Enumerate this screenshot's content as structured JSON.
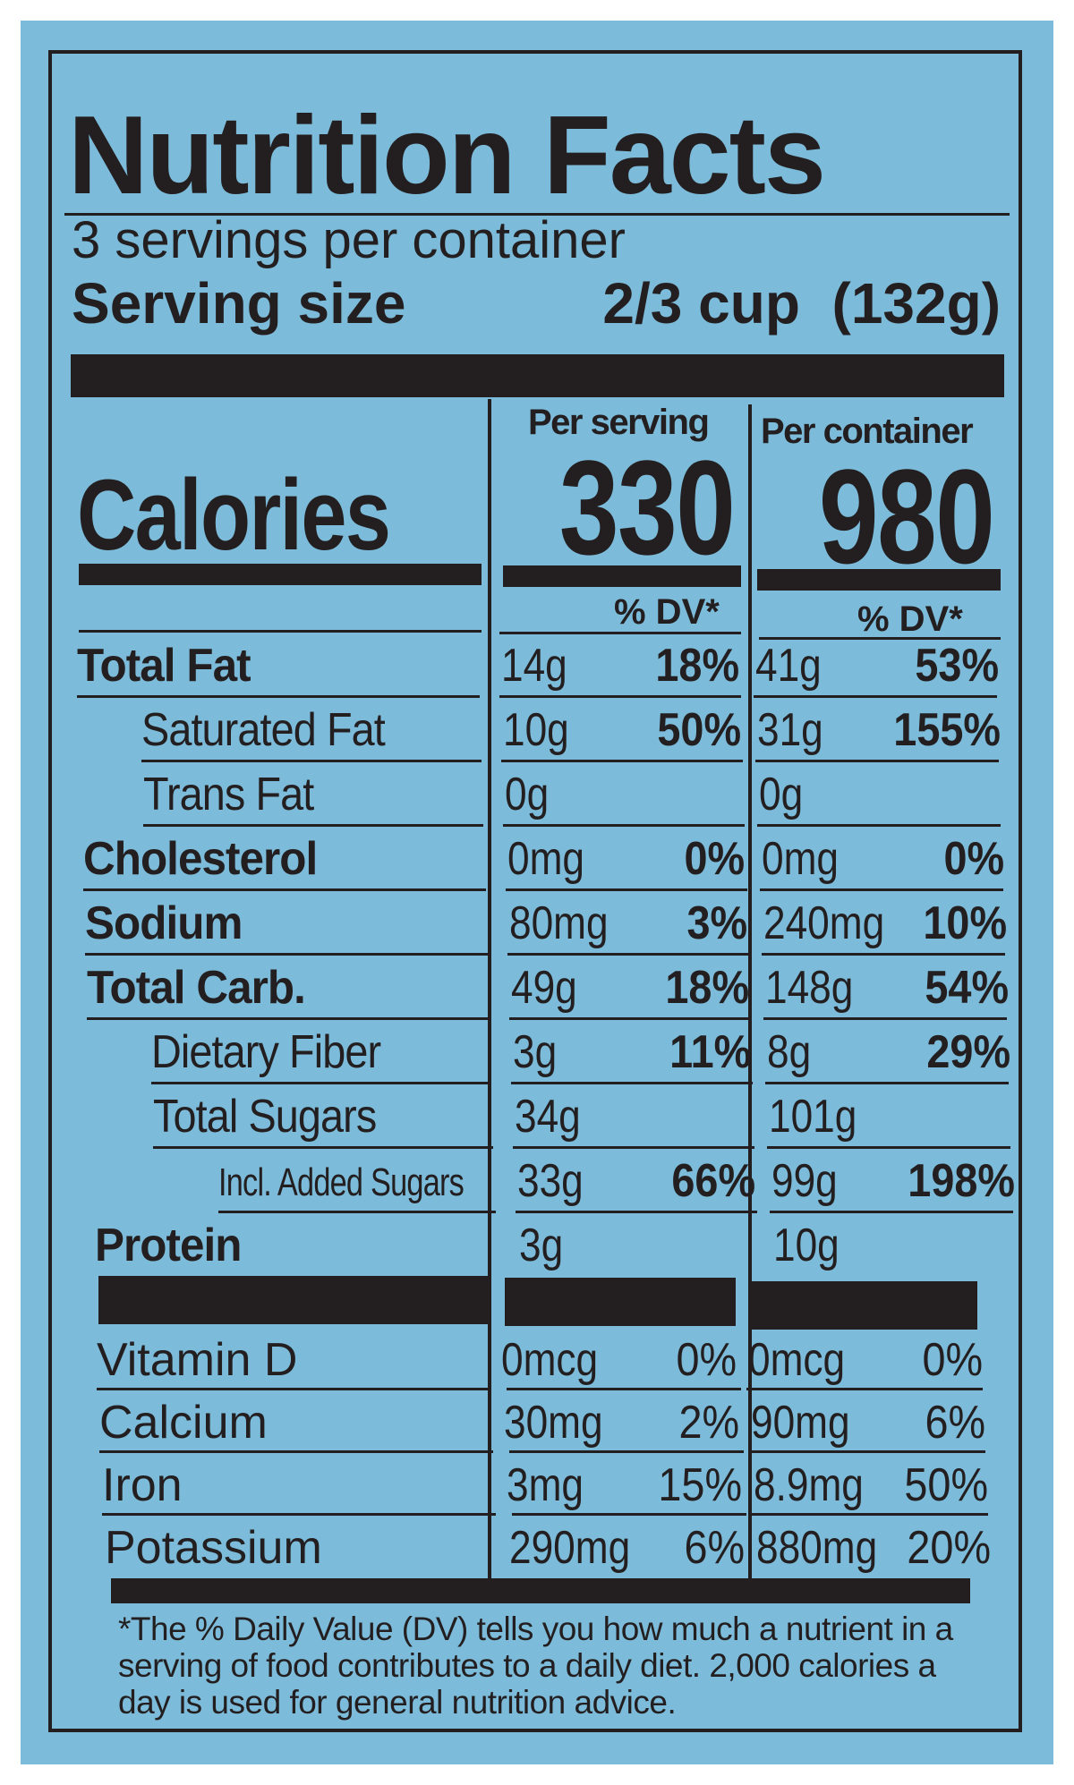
{
  "colors": {
    "background": "#7cbbd9",
    "ink": "#231f20"
  },
  "title": "Nutrition Facts",
  "servings_per_container": "3 servings per container",
  "serving_size": {
    "label": "Serving size",
    "value": "2/3 cup  (132g)"
  },
  "columns": {
    "per_serving": "Per serving",
    "per_container": "Per container"
  },
  "calories": {
    "label": "Calories",
    "per_serving": "330",
    "per_container": "980"
  },
  "dv_header": "% DV*",
  "nutrients": [
    {
      "name": "Total Fat",
      "bold": true,
      "indent": 0,
      "serving": "14g",
      "serving_dv": "18%",
      "container": "41g",
      "container_dv": "53%"
    },
    {
      "name": "Saturated Fat",
      "bold": false,
      "indent": 1,
      "serving": "10g",
      "serving_dv": "50%",
      "container": "31g",
      "container_dv": "155%"
    },
    {
      "name": "Trans Fat",
      "bold": false,
      "indent": 1,
      "serving": "0g",
      "serving_dv": "",
      "container": "0g",
      "container_dv": ""
    },
    {
      "name": "Cholesterol",
      "bold": true,
      "indent": 0,
      "serving": "0mg",
      "serving_dv": "0%",
      "container": "0mg",
      "container_dv": "0%"
    },
    {
      "name": "Sodium",
      "bold": true,
      "indent": 0,
      "serving": "80mg",
      "serving_dv": "3%",
      "container": "240mg",
      "container_dv": "10%"
    },
    {
      "name": "Total Carb.",
      "bold": true,
      "indent": 0,
      "serving": "49g",
      "serving_dv": "18%",
      "container": "148g",
      "container_dv": "54%"
    },
    {
      "name": "Dietary Fiber",
      "bold": false,
      "indent": 1,
      "serving": "3g",
      "serving_dv": "11%",
      "container": "8g",
      "container_dv": "29%"
    },
    {
      "name": "Total Sugars",
      "bold": false,
      "indent": 1,
      "serving": "34g",
      "serving_dv": "",
      "container": "101g",
      "container_dv": ""
    },
    {
      "name": "Incl. Added Sugars",
      "bold": false,
      "indent": 2,
      "serving": "33g",
      "serving_dv": "66%",
      "container": "99g",
      "container_dv": "198%"
    },
    {
      "name": "Protein",
      "bold": true,
      "indent": 0,
      "serving": "3g",
      "serving_dv": "",
      "container": "10g",
      "container_dv": ""
    }
  ],
  "vitamins": [
    {
      "name": "Vitamin D",
      "serving": "0mcg",
      "serving_dv": "0%",
      "container": "0mcg",
      "container_dv": "0%"
    },
    {
      "name": "Calcium",
      "serving": "30mg",
      "serving_dv": "2%",
      "container": "90mg",
      "container_dv": "6%"
    },
    {
      "name": "Iron",
      "serving": "3mg",
      "serving_dv": "15%",
      "container": "8.9mg",
      "container_dv": "50%"
    },
    {
      "name": "Potassium",
      "serving": "290mg",
      "serving_dv": "6%",
      "container": "880mg",
      "container_dv": "20%"
    }
  ],
  "footnote": "*The % Daily Value (DV) tells you how much a nutrient in a serving of food contributes to a daily diet. 2,000 calories a day is used for general nutrition advice."
}
